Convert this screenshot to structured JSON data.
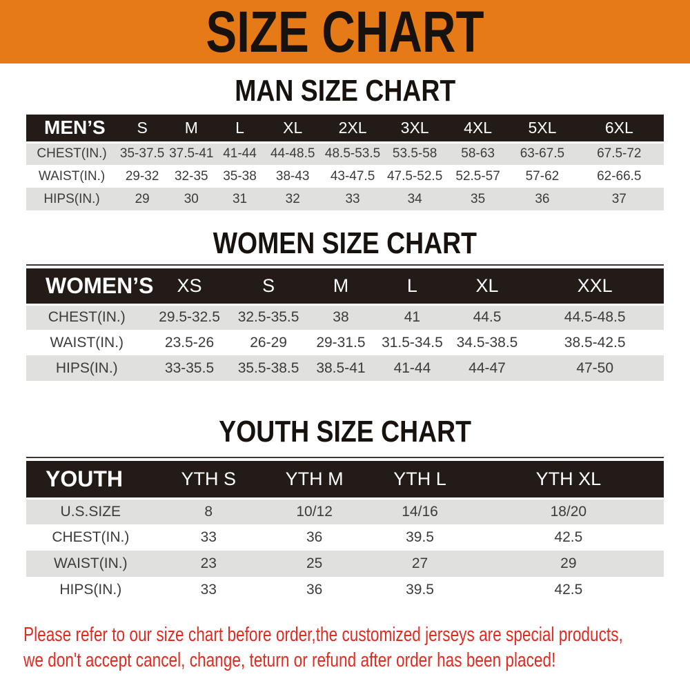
{
  "banner": {
    "title": "SIZE CHART"
  },
  "colors": {
    "banner_bg": "#e67a17",
    "header_bg": "#221b17",
    "stripe": "#e0e0de",
    "text_dark": "#3b3b3b",
    "disclaimer_red": "#e12a20",
    "rule": "#3a3330"
  },
  "tables": [
    {
      "id": "men",
      "heading": "MAN SIZE CHART",
      "header_label": "MEN’S",
      "columns": [
        "S",
        "M",
        "L",
        "XL",
        "2XL",
        "3XL",
        "4XL",
        "5XL",
        "6XL"
      ],
      "rows": [
        {
          "label": "CHEST(IN.)",
          "values": [
            "35-37.5",
            "37.5-41",
            "41-44",
            "44-48.5",
            "48.5-53.5",
            "53.5-58",
            "58-63",
            "63-67.5",
            "67.5-72"
          ]
        },
        {
          "label": "WAIST(IN.)",
          "values": [
            "29-32",
            "32-35",
            "35-38",
            "38-43",
            "43-47.5",
            "47.5-52.5",
            "52.5-57",
            "57-62",
            "62-66.5"
          ]
        },
        {
          "label": "HIPS(IN.)",
          "values": [
            "29",
            "30",
            "31",
            "32",
            "33",
            "34",
            "35",
            "36",
            "37"
          ]
        }
      ]
    },
    {
      "id": "women",
      "heading": "WOMEN SIZE CHART",
      "header_label": "WOMEN’S",
      "columns": [
        "XS",
        "S",
        "M",
        "L",
        "XL",
        "XXL"
      ],
      "rows": [
        {
          "label": "CHEST(IN.)",
          "values": [
            "29.5-32.5",
            "32.5-35.5",
            "38",
            "41",
            "44.5",
            "44.5-48.5"
          ]
        },
        {
          "label": "WAIST(IN.)",
          "values": [
            "23.5-26",
            "26-29",
            "29-31.5",
            "31.5-34.5",
            "34.5-38.5",
            "38.5-42.5"
          ]
        },
        {
          "label": "HIPS(IN.)",
          "values": [
            "33-35.5",
            "35.5-38.5",
            "38.5-41",
            "41-44",
            "44-47",
            "47-50"
          ]
        }
      ]
    },
    {
      "id": "youth",
      "heading": "YOUTH SIZE CHART",
      "header_label": "YOUTH",
      "columns": [
        "YTH S",
        "YTH M",
        "YTH L",
        "YTH XL"
      ],
      "rows": [
        {
          "label": "U.S.SIZE",
          "values": [
            "8",
            "10/12",
            "14/16",
            "18/20"
          ]
        },
        {
          "label": "CHEST(IN.)",
          "values": [
            "33",
            "36",
            "39.5",
            "42.5"
          ]
        },
        {
          "label": "WAIST(IN.)",
          "values": [
            "23",
            "25",
            "27",
            "29"
          ]
        },
        {
          "label": "HIPS(IN.)",
          "values": [
            "33",
            "36",
            "39.5",
            "42.5"
          ]
        }
      ]
    }
  ],
  "disclaimer": {
    "line1": "Please refer to our size chart before order,the customized jerseys are special products,",
    "line2": "we don't accept cancel, change, teturn or refund after order has been placed!"
  }
}
